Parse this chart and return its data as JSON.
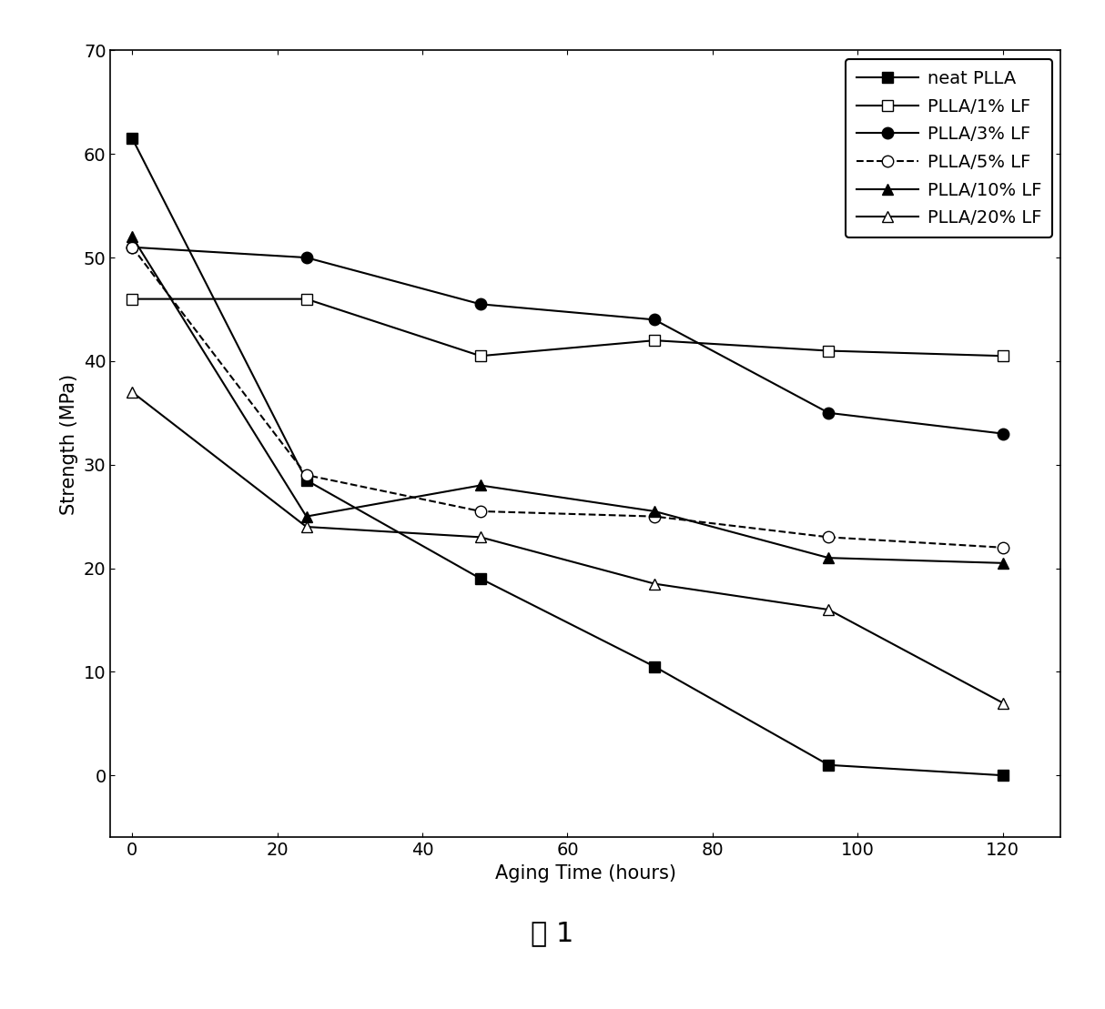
{
  "x": [
    0,
    24,
    48,
    72,
    96,
    120
  ],
  "series": [
    {
      "label": "neat PLLA",
      "y": [
        61.5,
        28.5,
        19,
        10.5,
        1,
        0
      ],
      "marker": "s",
      "fillstyle": "full",
      "color": "black",
      "linestyle": "-"
    },
    {
      "label": "PLLA/1% LF",
      "y": [
        46,
        46,
        40.5,
        42,
        41,
        40.5
      ],
      "marker": "s",
      "fillstyle": "none",
      "color": "black",
      "linestyle": "-"
    },
    {
      "label": "PLLA/3% LF",
      "y": [
        51,
        50,
        45.5,
        44,
        35,
        33
      ],
      "marker": "o",
      "fillstyle": "full",
      "color": "black",
      "linestyle": "-"
    },
    {
      "label": "PLLA/5% LF",
      "y": [
        51,
        29,
        25.5,
        25,
        23,
        22
      ],
      "marker": "o",
      "fillstyle": "none",
      "color": "black",
      "linestyle": "--"
    },
    {
      "label": "PLLA/10% LF",
      "y": [
        52,
        25,
        28,
        25.5,
        21,
        20.5
      ],
      "marker": "^",
      "fillstyle": "full",
      "color": "black",
      "linestyle": "-"
    },
    {
      "label": "PLLA/20% LF",
      "y": [
        37,
        24,
        23,
        18.5,
        16,
        7
      ],
      "marker": "^",
      "fillstyle": "none",
      "color": "black",
      "linestyle": "-"
    }
  ],
  "xlabel": "Aging Time (hours)",
  "ylabel": "Strength (MPa)",
  "xlim": [
    -3,
    128
  ],
  "ylim": [
    -6,
    70
  ],
  "yticks": [
    0,
    10,
    20,
    30,
    40,
    50,
    60,
    70
  ],
  "xticks": [
    0,
    20,
    40,
    60,
    80,
    100,
    120
  ],
  "caption": "图 1",
  "legend_fontsize": 14,
  "axis_label_fontsize": 15,
  "tick_fontsize": 14,
  "caption_fontsize": 22
}
